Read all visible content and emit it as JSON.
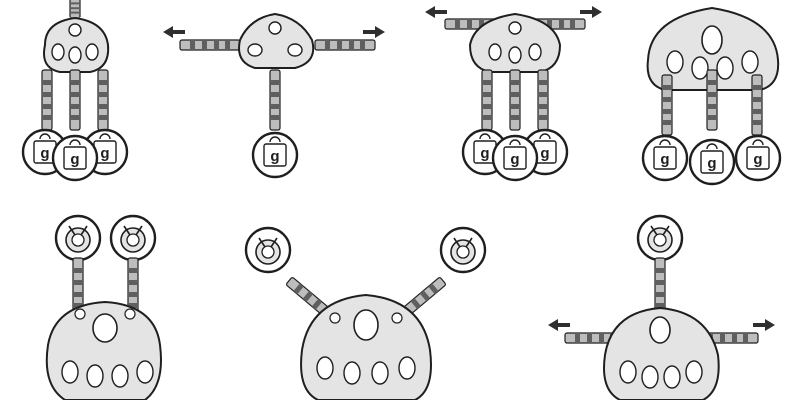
{
  "diagram": {
    "colors": {
      "outline": "#1f1f1f",
      "plate_fill": "#e4e4e4",
      "hole_fill": "#ffffff",
      "rod_fill": "#bdbdbd",
      "rod_dark": "#5f5f5f",
      "bead_fill": "#c9c9c9",
      "arrow": "#2f2f2f",
      "background": "#ffffff"
    },
    "weight_label": "g",
    "panels": [
      {
        "name": "panel-three-hanging-weights-small-plate"
      },
      {
        "name": "panel-horizontal-pull-single-weight"
      },
      {
        "name": "panel-horizontal-pull-three-weights"
      },
      {
        "name": "panel-large-plate-three-weights"
      },
      {
        "name": "panel-two-top-anchors-large-plate"
      },
      {
        "name": "panel-angled-anchors-large-plate"
      },
      {
        "name": "panel-single-top-anchor-horizontal-pull"
      }
    ]
  }
}
